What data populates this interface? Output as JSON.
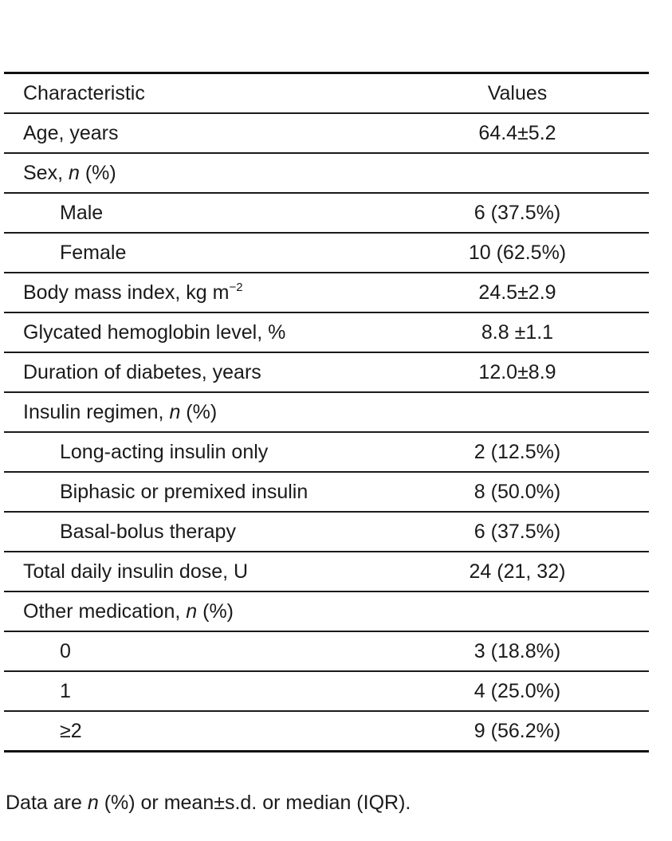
{
  "table": {
    "header": {
      "label": "Characteristic",
      "value": "Values"
    },
    "rows": [
      {
        "label": "Age, years",
        "value": "64.4±5.2"
      },
      {
        "label_pre": "Sex, ",
        "label_ital": "n",
        "label_post": " (%)",
        "value": ""
      },
      {
        "label": "Male",
        "value": "6 (37.5%)"
      },
      {
        "label": "Female",
        "value": "10 (62.5%)"
      },
      {
        "label_pre": "Body mass index, kg m",
        "label_sup": "−2",
        "value": "24.5±2.9"
      },
      {
        "label": "Glycated hemoglobin level, %",
        "value": "8.8 ±1.1"
      },
      {
        "label": "Duration of diabetes, years",
        "value": "12.0±8.9"
      },
      {
        "label_pre": "Insulin regimen, ",
        "label_ital": "n",
        "label_post": " (%)",
        "value": ""
      },
      {
        "label": "Long-acting insulin only",
        "value": "2 (12.5%)"
      },
      {
        "label": "Biphasic or premixed insulin",
        "value": "8 (50.0%)"
      },
      {
        "label": "Basal-bolus therapy",
        "value": "6 (37.5%)"
      },
      {
        "label": "Total daily insulin dose, U",
        "value": "24 (21, 32)"
      },
      {
        "label_pre": "Other medication, ",
        "label_ital": "n",
        "label_post": " (%)",
        "value": ""
      },
      {
        "label": "0",
        "value": "3 (18.8%)"
      },
      {
        "label": "1",
        "value": "4 (25.0%)"
      },
      {
        "label": "≥2",
        "value": "9 (56.2%)"
      }
    ]
  },
  "footnote": {
    "pre": "Data are ",
    "ital": "n",
    "post": " (%) or mean±s.d. or median (IQR)."
  }
}
